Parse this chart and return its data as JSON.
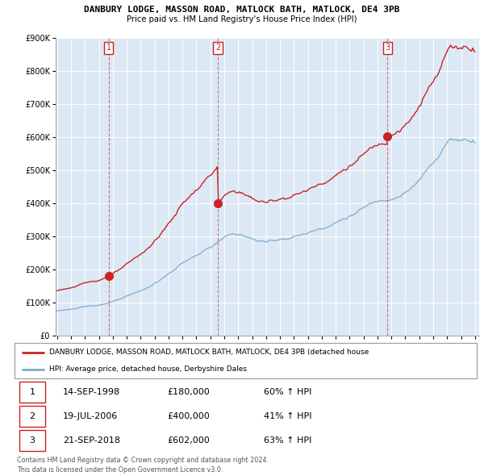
{
  "title": "DANBURY LODGE, MASSON ROAD, MATLOCK BATH, MATLOCK, DE4 3PB",
  "subtitle": "Price paid vs. HM Land Registry's House Price Index (HPI)",
  "ylim": [
    0,
    900000
  ],
  "yticks": [
    0,
    100000,
    200000,
    300000,
    400000,
    500000,
    600000,
    700000,
    800000,
    900000
  ],
  "ytick_labels": [
    "£0",
    "£100K",
    "£200K",
    "£300K",
    "£400K",
    "£500K",
    "£600K",
    "£700K",
    "£800K",
    "£900K"
  ],
  "sales": [
    {
      "date_num": 1998.71,
      "price": 180000,
      "label": "1"
    },
    {
      "date_num": 2006.54,
      "price": 400000,
      "label": "2"
    },
    {
      "date_num": 2018.72,
      "price": 602000,
      "label": "3"
    }
  ],
  "vlines": [
    1998.71,
    2006.54,
    2018.72
  ],
  "legend_line1": "DANBURY LODGE, MASSON ROAD, MATLOCK BATH, MATLOCK, DE4 3PB (detached house",
  "legend_line2": "HPI: Average price, detached house, Derbyshire Dales",
  "table_data": [
    [
      "1",
      "14-SEP-1998",
      "£180,000",
      "60% ↑ HPI"
    ],
    [
      "2",
      "19-JUL-2006",
      "£400,000",
      "41% ↑ HPI"
    ],
    [
      "3",
      "21-SEP-2018",
      "£602,000",
      "63% ↑ HPI"
    ]
  ],
  "footer": "Contains HM Land Registry data © Crown copyright and database right 2024.\nThis data is licensed under the Open Government Licence v3.0.",
  "red_color": "#cc2222",
  "blue_color": "#7aadcf",
  "bg_color": "#dce9f5",
  "grid_color": "#ffffff"
}
